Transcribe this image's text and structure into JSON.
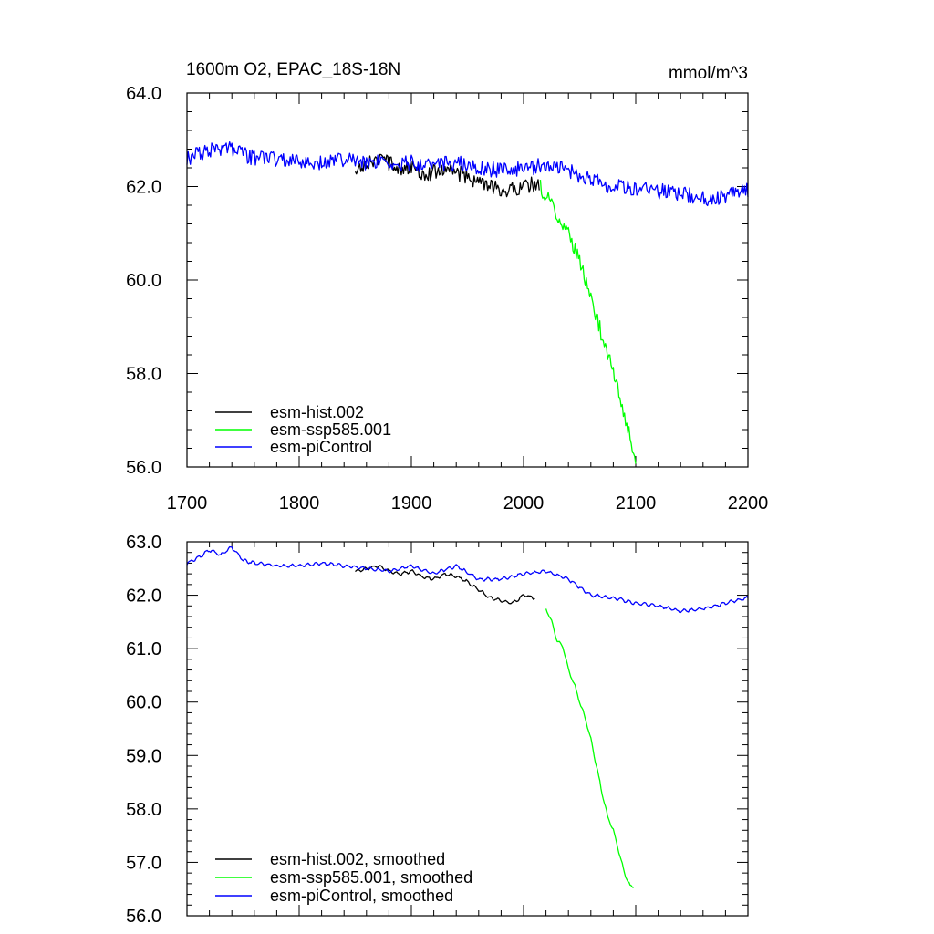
{
  "chart_data": [
    {
      "type": "line",
      "title": "1600m O2, EPAC_18S-18N",
      "units": "mmol/m^3",
      "xlim": [
        1700,
        2200
      ],
      "ylim": [
        56,
        64
      ],
      "xticks": [
        1700,
        1800,
        1900,
        2000,
        2100,
        2200
      ],
      "xtick_labels": [
        "1700",
        "1800",
        "1900",
        "2000",
        "2100",
        "2200"
      ],
      "yticks": [
        56,
        58,
        60,
        62,
        64
      ],
      "ytick_labels": [
        "56.0",
        "58.0",
        "60.0",
        "62.0",
        "64.0"
      ],
      "legend_position": "bottom-left",
      "series": [
        {
          "name": "esm-hist.002",
          "color": "#000000",
          "x": [
            1850,
            1860,
            1870,
            1880,
            1890,
            1900,
            1910,
            1920,
            1930,
            1940,
            1950,
            1960,
            1970,
            1980,
            1990,
            2000,
            2010,
            2014
          ],
          "y": [
            62.4,
            62.5,
            62.6,
            62.5,
            62.4,
            62.4,
            62.3,
            62.3,
            62.4,
            62.3,
            62.2,
            62.1,
            62.0,
            61.9,
            61.95,
            62.0,
            62.05,
            62.0
          ]
        },
        {
          "name": "esm-ssp585.001",
          "color": "#00ff00",
          "x": [
            2015,
            2020,
            2025,
            2030,
            2035,
            2040,
            2045,
            2050,
            2055,
            2060,
            2065,
            2070,
            2075,
            2080,
            2085,
            2090,
            2095,
            2100
          ],
          "y": [
            62.0,
            61.8,
            61.6,
            61.4,
            61.2,
            61.0,
            60.7,
            60.4,
            60.0,
            59.6,
            59.2,
            58.8,
            58.4,
            58.0,
            57.6,
            57.1,
            56.6,
            56.2
          ]
        },
        {
          "name": "esm-piControl",
          "color": "#0000ff",
          "x": [
            1700,
            1720,
            1740,
            1760,
            1780,
            1800,
            1820,
            1840,
            1860,
            1880,
            1900,
            1920,
            1940,
            1960,
            1980,
            2000,
            2020,
            2040,
            2060,
            2080,
            2100,
            2120,
            2140,
            2160,
            2180,
            2200
          ],
          "y": [
            62.6,
            62.8,
            62.8,
            62.6,
            62.6,
            62.5,
            62.5,
            62.6,
            62.5,
            62.5,
            62.5,
            62.45,
            62.5,
            62.4,
            62.35,
            62.4,
            62.45,
            62.35,
            62.15,
            62.0,
            61.95,
            61.9,
            61.85,
            61.75,
            61.8,
            61.9
          ]
        }
      ]
    },
    {
      "type": "line",
      "xlim": [
        1700,
        2200
      ],
      "ylim": [
        56,
        63
      ],
      "yticks": [
        56,
        57,
        58,
        59,
        60,
        61,
        62,
        63
      ],
      "ytick_labels": [
        "56.0",
        "57.0",
        "58.0",
        "59.0",
        "60.0",
        "61.0",
        "62.0",
        "63.0"
      ],
      "legend_position": "bottom-left",
      "series": [
        {
          "name": "esm-hist.002, smoothed",
          "color": "#000000",
          "x": [
            1850,
            1860,
            1870,
            1880,
            1890,
            1900,
            1910,
            1920,
            1930,
            1940,
            1950,
            1960,
            1970,
            1980,
            1990,
            2000,
            2010
          ],
          "y": [
            62.45,
            62.5,
            62.55,
            62.45,
            62.4,
            62.45,
            62.35,
            62.3,
            62.4,
            62.35,
            62.25,
            62.1,
            61.95,
            61.9,
            61.85,
            62.0,
            61.95
          ]
        },
        {
          "name": "esm-ssp585.001, smoothed",
          "color": "#00ff00",
          "x": [
            2020,
            2025,
            2030,
            2035,
            2040,
            2045,
            2050,
            2055,
            2060,
            2065,
            2070,
            2075,
            2080,
            2085,
            2090,
            2095,
            2098
          ],
          "y": [
            61.75,
            61.5,
            61.15,
            61.05,
            60.6,
            60.35,
            60.0,
            59.7,
            59.3,
            58.8,
            58.3,
            57.85,
            57.6,
            57.2,
            56.8,
            56.55,
            56.55
          ]
        },
        {
          "name": "esm-piControl, smoothed",
          "color": "#0000ff",
          "x": [
            1700,
            1710,
            1720,
            1730,
            1740,
            1750,
            1760,
            1780,
            1800,
            1820,
            1840,
            1860,
            1880,
            1900,
            1920,
            1940,
            1960,
            1980,
            2000,
            2020,
            2040,
            2060,
            2080,
            2100,
            2120,
            2140,
            2160,
            2180,
            2200
          ],
          "y": [
            62.6,
            62.7,
            62.85,
            62.75,
            62.9,
            62.65,
            62.6,
            62.55,
            62.55,
            62.6,
            62.55,
            62.5,
            62.45,
            62.55,
            62.4,
            62.55,
            62.3,
            62.3,
            62.4,
            62.45,
            62.3,
            62.0,
            61.95,
            61.85,
            61.8,
            61.7,
            61.75,
            61.85,
            61.95
          ]
        }
      ]
    }
  ]
}
